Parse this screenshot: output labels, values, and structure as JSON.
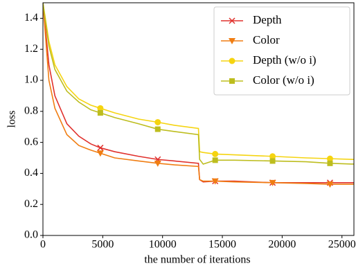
{
  "chart_data": {
    "type": "line",
    "xlabel": "the number of iterations",
    "ylabel": "loss",
    "x": [
      0,
      500,
      1000,
      2000,
      3000,
      4000,
      4800,
      6000,
      8000,
      9600,
      11000,
      13000,
      13100,
      13400,
      14400,
      16000,
      19200,
      22000,
      24000,
      26000
    ],
    "series": [
      {
        "name": "Depth",
        "color": "#e0302c",
        "marker": "x",
        "markevery": [
          6,
          9,
          14,
          16,
          18
        ],
        "values": [
          1.5,
          1.1,
          0.9,
          0.72,
          0.64,
          0.59,
          0.565,
          0.54,
          0.51,
          0.49,
          0.48,
          0.465,
          0.36,
          0.345,
          0.35,
          0.35,
          0.34,
          0.34,
          0.34,
          0.34
        ]
      },
      {
        "name": "Color",
        "color": "#f07d12",
        "marker": "v",
        "markevery": [
          6,
          9,
          14,
          16,
          18
        ],
        "values": [
          1.5,
          1.0,
          0.82,
          0.65,
          0.58,
          0.55,
          0.53,
          0.5,
          0.48,
          0.465,
          0.455,
          0.445,
          0.36,
          0.35,
          0.35,
          0.345,
          0.34,
          0.335,
          0.33,
          0.33
        ]
      },
      {
        "name": "Depth (w/o i)",
        "color": "#f5d410",
        "marker": "o",
        "markevery": [
          6,
          9,
          14,
          16,
          18
        ],
        "values": [
          1.5,
          1.25,
          1.1,
          0.96,
          0.88,
          0.84,
          0.82,
          0.79,
          0.75,
          0.73,
          0.71,
          0.69,
          0.54,
          0.535,
          0.525,
          0.52,
          0.51,
          0.5,
          0.495,
          0.49
        ]
      },
      {
        "name": "Color (w/o i)",
        "color": "#bdbd1e",
        "marker": "s",
        "markevery": [
          6,
          9,
          14,
          16,
          18
        ],
        "values": [
          1.5,
          1.22,
          1.07,
          0.93,
          0.86,
          0.81,
          0.79,
          0.76,
          0.72,
          0.685,
          0.67,
          0.65,
          0.49,
          0.46,
          0.485,
          0.485,
          0.48,
          0.475,
          0.465,
          0.46
        ]
      }
    ],
    "xlim": [
      0,
      26000
    ],
    "ylim": [
      0,
      1.5
    ],
    "xticks": [
      0,
      5000,
      10000,
      15000,
      20000,
      25000
    ],
    "yticks": [
      {
        "value": 0,
        "label": "0.0"
      },
      0.2,
      0.4,
      0.6,
      0.8,
      {
        "value": 1,
        "label": "1.0"
      },
      1.2,
      1.4
    ],
    "legend": "upper right",
    "grid": false
  }
}
